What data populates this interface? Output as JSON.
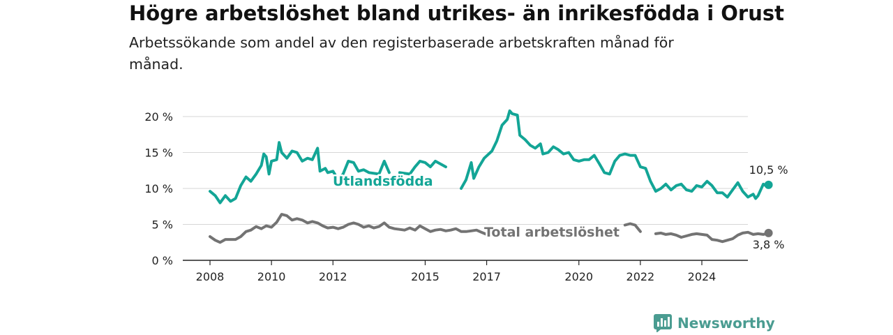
{
  "title": "Högre arbetslöshet bland utrikes- än inrikesfödda i Orust",
  "subtitle": "Arbetssökande som andel av den registerbaserade arbetskraften månad för månad.",
  "brand": "Newsworthy",
  "colors": {
    "foreign": "#13a596",
    "total": "#737373",
    "brand": "#4a9c91"
  },
  "chart_data": {
    "type": "line",
    "title": "Högre arbetslöshet bland utrikes- än inrikesfödda i Orust",
    "subtitle": "Arbetssökande som andel av den registerbaserade arbetskraften månad för månad.",
    "xlabel": "",
    "ylabel": "",
    "ylim": [
      0,
      20
    ],
    "y_ticks": [
      "0 %",
      "5 %",
      "10 %",
      "15 %",
      "20 %"
    ],
    "x_ticks": [
      "2008",
      "2010",
      "2012",
      "2015",
      "2017",
      "2020",
      "2022",
      "2024"
    ],
    "grid": true,
    "series": [
      {
        "name": "Utlandsfödda",
        "end_label": "10,5 %",
        "points": [
          [
            2008.0,
            9.6
          ],
          [
            2008.17,
            9.0
          ],
          [
            2008.33,
            8.0
          ],
          [
            2008.5,
            9.0
          ],
          [
            2008.67,
            8.2
          ],
          [
            2008.83,
            8.6
          ],
          [
            2009.0,
            10.4
          ],
          [
            2009.17,
            11.6
          ],
          [
            2009.33,
            11.0
          ],
          [
            2009.5,
            12.0
          ],
          [
            2009.67,
            13.2
          ],
          [
            2009.75,
            14.8
          ],
          [
            2009.83,
            14.4
          ],
          [
            2009.92,
            12.0
          ],
          [
            2010.0,
            13.8
          ],
          [
            2010.17,
            14.0
          ],
          [
            2010.25,
            16.4
          ],
          [
            2010.33,
            15.0
          ],
          [
            2010.5,
            14.2
          ],
          [
            2010.67,
            15.2
          ],
          [
            2010.83,
            15.0
          ],
          [
            2011.0,
            13.8
          ],
          [
            2011.17,
            14.2
          ],
          [
            2011.33,
            14.0
          ],
          [
            2011.5,
            15.6
          ],
          [
            2011.58,
            12.4
          ],
          [
            2011.75,
            12.8
          ],
          [
            2011.83,
            12.2
          ],
          [
            2012.0,
            12.4
          ],
          [
            2012.17,
            11.2
          ],
          [
            2012.33,
            12.0
          ],
          [
            2012.5,
            13.8
          ],
          [
            2012.67,
            13.6
          ],
          [
            2012.83,
            12.4
          ],
          [
            2013.0,
            12.6
          ],
          [
            2013.17,
            12.2
          ],
          [
            2013.5,
            12.0
          ],
          [
            2013.67,
            13.8
          ],
          [
            2013.83,
            12.2
          ],
          null,
          [
            2014.17,
            12.2
          ],
          [
            2014.5,
            12.0
          ],
          [
            2014.67,
            13.0
          ],
          [
            2014.83,
            13.8
          ],
          [
            2015.0,
            13.6
          ],
          [
            2015.17,
            13.0
          ],
          [
            2015.33,
            13.8
          ],
          [
            2015.5,
            13.4
          ],
          [
            2015.67,
            13.0
          ],
          null,
          [
            2016.17,
            10.0
          ],
          [
            2016.33,
            11.2
          ],
          [
            2016.5,
            13.6
          ],
          [
            2016.58,
            11.4
          ],
          [
            2016.75,
            13.0
          ],
          [
            2016.92,
            14.2
          ],
          [
            2017.17,
            15.2
          ],
          [
            2017.33,
            16.6
          ],
          [
            2017.5,
            18.8
          ],
          [
            2017.67,
            19.6
          ],
          [
            2017.75,
            20.8
          ],
          [
            2017.83,
            20.4
          ],
          [
            2018.0,
            20.2
          ],
          [
            2018.08,
            17.4
          ],
          [
            2018.25,
            16.8
          ],
          [
            2018.42,
            16.0
          ],
          [
            2018.58,
            15.6
          ],
          [
            2018.75,
            16.2
          ],
          [
            2018.83,
            14.8
          ],
          [
            2019.0,
            15.0
          ],
          [
            2019.17,
            15.8
          ],
          [
            2019.33,
            15.4
          ],
          [
            2019.5,
            14.8
          ],
          [
            2019.67,
            15.0
          ],
          [
            2019.83,
            14.0
          ],
          [
            2020.0,
            13.8
          ],
          [
            2020.17,
            14.0
          ],
          [
            2020.33,
            14.0
          ],
          [
            2020.5,
            14.6
          ],
          [
            2020.67,
            13.4
          ],
          [
            2020.83,
            12.2
          ],
          [
            2021.0,
            12.0
          ],
          [
            2021.17,
            13.8
          ],
          [
            2021.33,
            14.6
          ],
          [
            2021.5,
            14.8
          ],
          [
            2021.67,
            14.6
          ],
          [
            2021.83,
            14.6
          ],
          [
            2022.0,
            13.0
          ],
          [
            2022.17,
            12.8
          ],
          [
            2022.33,
            11.0
          ],
          [
            2022.5,
            9.6
          ],
          [
            2022.67,
            10.0
          ],
          [
            2022.83,
            10.6
          ],
          [
            2023.0,
            9.8
          ],
          [
            2023.17,
            10.4
          ],
          [
            2023.33,
            10.6
          ],
          [
            2023.5,
            9.8
          ],
          [
            2023.67,
            9.6
          ],
          [
            2023.83,
            10.4
          ],
          [
            2024.0,
            10.2
          ],
          [
            2024.17,
            11.0
          ],
          [
            2024.33,
            10.4
          ],
          [
            2024.5,
            9.4
          ],
          [
            2024.67,
            9.4
          ],
          [
            2024.83,
            8.8
          ],
          [
            2025.0,
            9.8
          ],
          [
            2025.17,
            10.8
          ],
          [
            2025.33,
            9.6
          ],
          [
            2025.5,
            8.8
          ],
          [
            2025.67,
            9.2
          ],
          [
            2025.75,
            8.6
          ],
          [
            2025.83,
            9.0
          ],
          [
            2026.0,
            10.6
          ],
          [
            2026.08,
            10.4
          ],
          [
            2026.17,
            10.5
          ]
        ]
      },
      {
        "name": "Total arbetslöshet",
        "end_label": "3,8 %",
        "points": [
          [
            2008.0,
            3.3
          ],
          [
            2008.17,
            2.8
          ],
          [
            2008.33,
            2.5
          ],
          [
            2008.5,
            2.9
          ],
          [
            2008.67,
            2.9
          ],
          [
            2008.83,
            2.9
          ],
          [
            2009.0,
            3.3
          ],
          [
            2009.17,
            4.0
          ],
          [
            2009.33,
            4.2
          ],
          [
            2009.5,
            4.7
          ],
          [
            2009.67,
            4.4
          ],
          [
            2009.83,
            4.8
          ],
          [
            2010.0,
            4.6
          ],
          [
            2010.17,
            5.3
          ],
          [
            2010.33,
            6.4
          ],
          [
            2010.5,
            6.2
          ],
          [
            2010.67,
            5.6
          ],
          [
            2010.83,
            5.8
          ],
          [
            2011.0,
            5.6
          ],
          [
            2011.17,
            5.2
          ],
          [
            2011.33,
            5.4
          ],
          [
            2011.5,
            5.2
          ],
          [
            2011.67,
            4.8
          ],
          [
            2011.83,
            4.5
          ],
          [
            2012.0,
            4.6
          ],
          [
            2012.17,
            4.4
          ],
          [
            2012.33,
            4.6
          ],
          [
            2012.5,
            5.0
          ],
          [
            2012.67,
            5.2
          ],
          [
            2012.83,
            5.0
          ],
          [
            2013.0,
            4.6
          ],
          [
            2013.17,
            4.8
          ],
          [
            2013.33,
            4.5
          ],
          [
            2013.5,
            4.7
          ],
          [
            2013.67,
            5.2
          ],
          [
            2013.83,
            4.6
          ],
          [
            2014.0,
            4.4
          ],
          [
            2014.17,
            4.3
          ],
          [
            2014.33,
            4.2
          ],
          [
            2014.5,
            4.5
          ],
          [
            2014.67,
            4.2
          ],
          [
            2014.83,
            4.8
          ],
          [
            2015.0,
            4.4
          ],
          [
            2015.17,
            4.0
          ],
          [
            2015.33,
            4.2
          ],
          [
            2015.5,
            4.3
          ],
          [
            2015.67,
            4.1
          ],
          [
            2015.83,
            4.2
          ],
          [
            2016.0,
            4.4
          ],
          [
            2016.17,
            4.0
          ],
          [
            2016.33,
            4.0
          ],
          [
            2016.5,
            4.1
          ],
          [
            2016.67,
            4.2
          ],
          [
            2016.83,
            3.9
          ],
          [
            2017.0,
            3.6
          ],
          [
            2017.17,
            3.8
          ],
          [
            2017.33,
            3.9
          ],
          [
            2017.5,
            4.0
          ],
          [
            2017.67,
            4.2
          ],
          null,
          [
            2021.5,
            4.9
          ],
          [
            2021.67,
            5.1
          ],
          [
            2021.83,
            4.9
          ],
          [
            2022.0,
            4.0
          ],
          null,
          [
            2022.5,
            3.7
          ],
          [
            2022.67,
            3.8
          ],
          [
            2022.83,
            3.6
          ],
          [
            2023.0,
            3.7
          ],
          [
            2023.17,
            3.5
          ],
          [
            2023.33,
            3.2
          ],
          [
            2023.5,
            3.4
          ],
          [
            2023.67,
            3.6
          ],
          [
            2023.83,
            3.7
          ],
          [
            2024.0,
            3.6
          ],
          [
            2024.17,
            3.5
          ],
          [
            2024.33,
            2.9
          ],
          [
            2024.5,
            2.8
          ],
          [
            2024.67,
            2.6
          ],
          [
            2024.83,
            2.8
          ],
          [
            2025.0,
            3.0
          ],
          [
            2025.17,
            3.5
          ],
          [
            2025.33,
            3.8
          ],
          [
            2025.5,
            3.9
          ],
          [
            2025.67,
            3.6
          ],
          [
            2025.83,
            3.7
          ],
          [
            2026.0,
            3.6
          ],
          [
            2026.17,
            3.8
          ]
        ]
      }
    ]
  }
}
